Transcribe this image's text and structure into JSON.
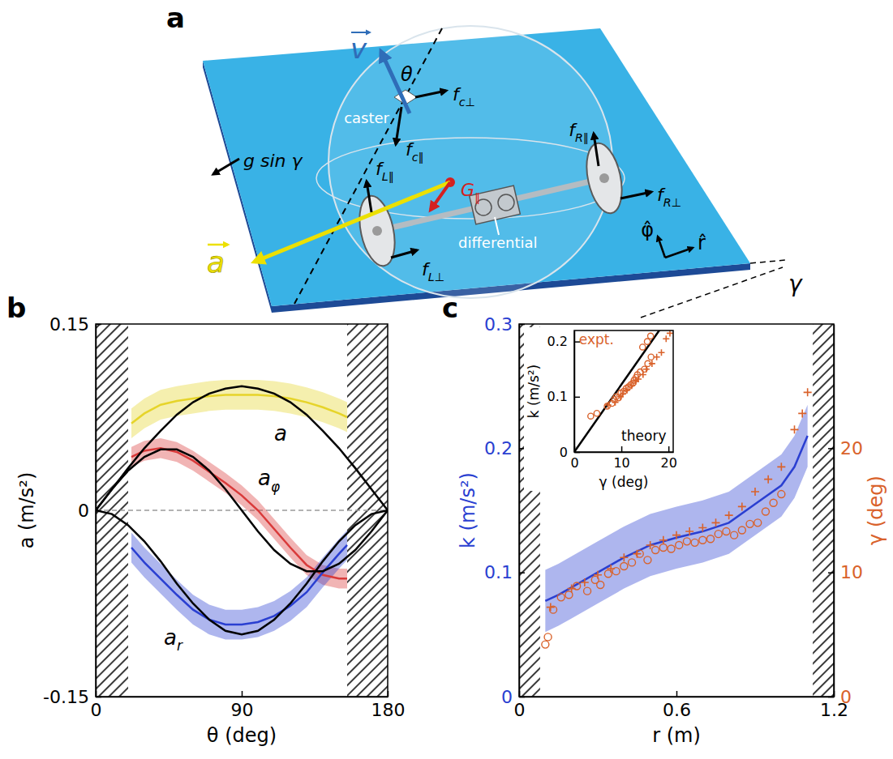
{
  "chart_data": [
    {
      "type": "line",
      "title": "b",
      "x_label": "θ (deg)",
      "y_label": "a (m/s²)",
      "xlim": [
        0,
        180
      ],
      "xticks": [
        0,
        90,
        180
      ],
      "ylim": [
        -0.15,
        0.15
      ],
      "yticks": [
        -0.15,
        0,
        0.15
      ],
      "excluded_ranges": [
        [
          0,
          20
        ],
        [
          155,
          180
        ]
      ],
      "reference_lines": [
        0
      ],
      "series": [
        {
          "color": "#e6d42a",
          "x": [
            22,
            30,
            40,
            50,
            60,
            70,
            80,
            90,
            100,
            110,
            120,
            130,
            140,
            150,
            155
          ],
          "values": [
            0.07,
            0.078,
            0.085,
            0.088,
            0.09,
            0.092,
            0.093,
            0.093,
            0.093,
            0.092,
            0.09,
            0.087,
            0.083,
            0.078,
            0.075
          ],
          "error": [
            0.012,
            0.012,
            0.012,
            0.012,
            0.012,
            0.012,
            0.012,
            0.012,
            0.012,
            0.012,
            0.012,
            0.012,
            0.012,
            0.012,
            0.012
          ]
        },
        {
          "color": "#d93a3a",
          "x": [
            22,
            30,
            40,
            50,
            60,
            70,
            80,
            90,
            100,
            110,
            120,
            130,
            140,
            150,
            155
          ],
          "values": [
            0.043,
            0.048,
            0.05,
            0.047,
            0.04,
            0.031,
            0.022,
            0.012,
            0.0,
            -0.015,
            -0.03,
            -0.044,
            -0.052,
            -0.055,
            -0.055
          ],
          "error": [
            0.008,
            0.008,
            0.008,
            0.008,
            0.008,
            0.008,
            0.008,
            0.008,
            0.008,
            0.008,
            0.008,
            0.008,
            0.008,
            0.008,
            0.008
          ]
        },
        {
          "color": "#2a3fd1",
          "x": [
            22,
            30,
            40,
            50,
            60,
            70,
            80,
            90,
            100,
            110,
            120,
            130,
            140,
            150,
            155
          ],
          "values": [
            -0.03,
            -0.042,
            -0.055,
            -0.068,
            -0.08,
            -0.088,
            -0.092,
            -0.092,
            -0.09,
            -0.085,
            -0.077,
            -0.066,
            -0.05,
            -0.035,
            -0.028
          ],
          "error": [
            0.012,
            0.012,
            0.012,
            0.012,
            0.012,
            0.012,
            0.012,
            0.012,
            0.012,
            0.012,
            0.012,
            0.012,
            0.012,
            0.012,
            0.012
          ]
        },
        {
          "color": "#000000",
          "x": [
            0,
            10,
            20,
            30,
            40,
            50,
            60,
            70,
            80,
            90,
            100,
            110,
            120,
            130,
            140,
            150,
            160,
            170,
            180
          ],
          "values": [
            0,
            0.017,
            0.034,
            0.05,
            0.064,
            0.077,
            0.087,
            0.094,
            0.098,
            0.1,
            0.098,
            0.094,
            0.087,
            0.077,
            0.064,
            0.05,
            0.034,
            0.017,
            0
          ]
        },
        {
          "color": "#000000",
          "x": [
            0,
            10,
            20,
            30,
            40,
            50,
            60,
            70,
            80,
            90,
            100,
            110,
            120,
            130,
            140,
            150,
            160,
            170,
            180
          ],
          "values": [
            0,
            0.017,
            0.032,
            0.043,
            0.049,
            0.049,
            0.043,
            0.032,
            0.017,
            0,
            -0.017,
            -0.032,
            -0.043,
            -0.049,
            -0.049,
            -0.043,
            -0.032,
            -0.017,
            0
          ]
        },
        {
          "color": "#000000",
          "x": [
            0,
            10,
            20,
            30,
            40,
            50,
            60,
            70,
            80,
            90,
            100,
            110,
            120,
            130,
            140,
            150,
            160,
            170,
            180
          ],
          "values": [
            0,
            -0.003,
            -0.012,
            -0.025,
            -0.041,
            -0.059,
            -0.075,
            -0.088,
            -0.097,
            -0.1,
            -0.097,
            -0.088,
            -0.075,
            -0.059,
            -0.041,
            -0.025,
            -0.012,
            -0.003,
            0
          ]
        }
      ],
      "annotations": [
        {
          "text": "a",
          "x": 110,
          "y": 0.056
        },
        {
          "text": "aφ",
          "x": 100,
          "y": 0.02
        },
        {
          "text": "ar",
          "x": 42,
          "y": -0.108
        }
      ]
    },
    {
      "type": "scatter",
      "title": "c",
      "x_label": "r (m)",
      "y_label": "k (m/s²)",
      "y2_label": "γ (deg)",
      "xlim": [
        0,
        1.2
      ],
      "xticks": [
        0,
        0.6,
        1.2
      ],
      "ylim": [
        0,
        0.3
      ],
      "yticks": [
        0,
        0.1,
        0.2,
        0.3
      ],
      "y2lim": [
        0,
        30
      ],
      "y2ticks": [
        0,
        10,
        20
      ],
      "excluded_ranges": [
        [
          0,
          0.08
        ],
        [
          1.12,
          1.2
        ]
      ],
      "series": [
        {
          "type": "line",
          "color": "#2a3fd1",
          "x": [
            0.1,
            0.15,
            0.2,
            0.3,
            0.4,
            0.5,
            0.6,
            0.7,
            0.8,
            0.9,
            1.0,
            1.05,
            1.1
          ],
          "values": [
            0.077,
            0.082,
            0.088,
            0.1,
            0.112,
            0.122,
            0.128,
            0.133,
            0.14,
            0.155,
            0.17,
            0.185,
            0.21
          ],
          "error": [
            0.025,
            0.025,
            0.025,
            0.025,
            0.025,
            0.025,
            0.025,
            0.025,
            0.025,
            0.025,
            0.025,
            0.025,
            0.025
          ]
        },
        {
          "type": "scatter",
          "axis": "y2",
          "marker": "plus",
          "color": "#d9622b",
          "x": [
            0.12,
            0.2,
            0.25,
            0.3,
            0.35,
            0.4,
            0.45,
            0.5,
            0.55,
            0.6,
            0.65,
            0.7,
            0.75,
            0.8,
            0.85,
            0.9,
            0.95,
            1.0,
            1.05,
            1.08,
            1.1
          ],
          "values": [
            7.2,
            8.7,
            9.2,
            9.8,
            10.3,
            11.2,
            11.5,
            12.2,
            12.6,
            13.0,
            13.3,
            13.6,
            14.0,
            14.6,
            15.3,
            16.5,
            17.5,
            18.5,
            21.5,
            22.8,
            24.5
          ]
        },
        {
          "type": "scatter",
          "axis": "y2",
          "marker": "circle",
          "color": "#d9622b",
          "x": [
            0.1,
            0.11,
            0.13,
            0.16,
            0.19,
            0.22,
            0.26,
            0.29,
            0.31,
            0.34,
            0.37,
            0.4,
            0.43,
            0.46,
            0.49,
            0.52,
            0.55,
            0.58,
            0.61,
            0.64,
            0.67,
            0.7,
            0.73,
            0.76,
            0.79,
            0.82,
            0.85,
            0.88,
            0.91,
            0.94,
            0.97,
            1.0
          ],
          "values": [
            4.2,
            4.8,
            7.0,
            8.0,
            8.2,
            8.9,
            8.5,
            9.4,
            9.0,
            9.9,
            10.1,
            10.5,
            10.8,
            11.5,
            11.0,
            11.8,
            12.0,
            11.9,
            12.2,
            12.5,
            12.4,
            12.6,
            12.7,
            13.1,
            13.3,
            13.0,
            13.4,
            13.9,
            14.0,
            14.9,
            15.6,
            16.3
          ]
        }
      ],
      "inset": {
        "type": "scatter",
        "x_label": "γ (deg)",
        "y_label": "k (m/s²)",
        "xlim": [
          0,
          21
        ],
        "xticks": [
          0,
          10,
          20
        ],
        "ylim": [
          0,
          0.22
        ],
        "yticks": [
          0,
          0.1,
          0.2
        ],
        "series": [
          {
            "type": "line",
            "color": "#000000",
            "x": [
              0,
              10,
              20
            ],
            "values": [
              0,
              0.122,
              0.244
            ]
          },
          {
            "marker": "plus",
            "color": "#d9622b",
            "x": [
              7.2,
              8.7,
              9.8,
              10.3,
              11.2,
              12.2,
              13.0,
              13.6,
              14.6,
              15.3,
              16.5,
              17.5,
              18.5,
              19.5,
              20.3
            ],
            "values": [
              0.085,
              0.09,
              0.1,
              0.105,
              0.112,
              0.12,
              0.128,
              0.132,
              0.14,
              0.15,
              0.16,
              0.172,
              0.18,
              0.205,
              0.215
            ]
          },
          {
            "marker": "circle",
            "color": "#d9622b",
            "x": [
              3.5,
              4.8,
              7.0,
              8.0,
              8.5,
              8.9,
              9.4,
              9.9,
              10.5,
              11.0,
              11.5,
              12.0,
              12.5,
              12.7,
              13.1,
              13.4,
              14.0,
              14.9,
              15.6,
              16.3,
              14.5,
              15.5,
              16.2
            ],
            "values": [
              0.065,
              0.07,
              0.083,
              0.088,
              0.095,
              0.1,
              0.098,
              0.107,
              0.11,
              0.115,
              0.118,
              0.122,
              0.125,
              0.13,
              0.135,
              0.14,
              0.145,
              0.15,
              0.16,
              0.172,
              0.19,
              0.2,
              0.21
            ]
          }
        ],
        "annotations": [
          {
            "text": "expt.",
            "x": 1,
            "y": 0.195,
            "color": "#d9622b"
          },
          {
            "text": "theory",
            "x": 10,
            "y": 0.02,
            "color": "#000000"
          }
        ]
      }
    }
  ],
  "diagram": {
    "panel": "a",
    "velocity": "v",
    "angle": "θ",
    "caster": "caster",
    "caster_perpendicular": "fc⊥",
    "caster_parallel": "fc∥",
    "right_parallel": "fR∥",
    "right_perpendicular": "fR⊥",
    "left_parallel": "fL∥",
    "left_perpendicular": "fL⊥",
    "gravity_parallel": "G∥",
    "acceleration": "a",
    "differential": "differential",
    "slope_gravity": "g sin γ",
    "incline_angle": "γ",
    "radial": "r̂",
    "azimuthal": "φ̂"
  }
}
